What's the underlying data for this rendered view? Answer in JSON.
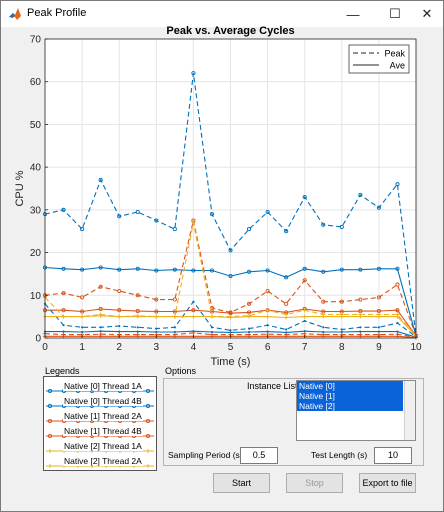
{
  "window": {
    "title": "Peak Profile",
    "controls": {
      "minimize": "—",
      "maximize": "☐",
      "close": "✕"
    }
  },
  "chart_data": {
    "type": "line",
    "title": "Peak vs. Average Cycles",
    "xlabel": "Time (s)",
    "ylabel": "CPU %",
    "xlim": [
      0,
      10
    ],
    "ylim": [
      0,
      70
    ],
    "xticks": [
      "0",
      "1",
      "2",
      "3",
      "4",
      "5",
      "6",
      "7",
      "8",
      "9",
      "10"
    ],
    "yticks": [
      "0",
      "10",
      "20",
      "30",
      "40",
      "50",
      "60",
      "70"
    ],
    "grid": true,
    "legend": {
      "position": "top-right",
      "entries": [
        {
          "label": "Peak",
          "style": "dashed"
        },
        {
          "label": "Ave",
          "style": "solid"
        }
      ]
    },
    "x": [
      0,
      0.5,
      1,
      1.5,
      2,
      2.5,
      3,
      3.5,
      4,
      4.5,
      5,
      5.5,
      6,
      6.5,
      7,
      7.5,
      8,
      8.5,
      9,
      9.5,
      10
    ],
    "series": [
      {
        "style": "dashed",
        "color": "#0072BD",
        "marker": "circle",
        "values": [
          29,
          30,
          25.5,
          37,
          28.5,
          29.5,
          27.5,
          25.5,
          62,
          29,
          20.5,
          25.5,
          29.5,
          25,
          33,
          26.5,
          26,
          33.5,
          30.5,
          36,
          0.5
        ]
      },
      {
        "style": "solid",
        "color": "#0072BD",
        "marker": "circle",
        "values": [
          16.5,
          16.2,
          16.0,
          16.5,
          16.0,
          16.2,
          15.8,
          16.0,
          15.8,
          15.8,
          14.5,
          15.5,
          15.8,
          14.2,
          16.2,
          15.5,
          16.0,
          16.0,
          16.2,
          16.2,
          0.5
        ]
      },
      {
        "style": "dashed",
        "color": "#D95319",
        "marker": "circle",
        "values": [
          10,
          10.5,
          9.5,
          12,
          11,
          10,
          9,
          9,
          27.5,
          7,
          6,
          8,
          11,
          8,
          13.5,
          8.5,
          8.5,
          9,
          9.5,
          12.5,
          0.5
        ]
      },
      {
        "style": "solid",
        "color": "#D95319",
        "marker": "circle",
        "values": [
          6.5,
          6.5,
          6.2,
          6.8,
          6.5,
          6.3,
          6.2,
          6.2,
          6.5,
          6.2,
          5.8,
          6.0,
          6.5,
          6.0,
          6.8,
          6.2,
          6.2,
          6.3,
          6.3,
          6.5,
          0.5
        ]
      },
      {
        "style": "dashed",
        "color": "#0072BD",
        "marker": "dot",
        "values": [
          8,
          3,
          2.5,
          2.5,
          2.8,
          2.5,
          2.2,
          2.5,
          8.5,
          2.5,
          1.8,
          2.2,
          3,
          2,
          4,
          2.5,
          2,
          2.5,
          2.5,
          3.5,
          0.3
        ]
      },
      {
        "style": "solid",
        "color": "#0072BD",
        "marker": "dot",
        "values": [
          1.5,
          1.5,
          1.4,
          1.6,
          1.5,
          1.5,
          1.4,
          1.4,
          1.6,
          1.4,
          1.3,
          1.4,
          1.5,
          1.3,
          1.6,
          1.4,
          1.4,
          1.5,
          1.5,
          1.5,
          0.2
        ]
      },
      {
        "style": "dashed",
        "color": "#EDB120",
        "marker": "plus",
        "values": [
          9.5,
          5,
          5,
          5.5,
          5,
          5.2,
          5,
          5,
          27,
          5,
          5,
          5.2,
          6.5,
          5.5,
          6.5,
          5.5,
          5.5,
          5.5,
          5.5,
          5.5,
          0.5
        ]
      },
      {
        "style": "solid",
        "color": "#EDB120",
        "marker": "plus",
        "values": [
          5,
          5,
          5,
          5.2,
          5,
          5,
          5,
          5,
          5,
          5,
          4.8,
          5,
          5,
          4.8,
          5,
          5,
          5,
          5,
          5,
          5,
          0.5
        ]
      },
      {
        "style": "dashed",
        "color": "#D95319",
        "marker": "plus",
        "values": [
          1,
          0.8,
          0.8,
          0.9,
          0.8,
          0.8,
          0.8,
          0.8,
          1.2,
          0.8,
          0.8,
          0.8,
          0.9,
          0.8,
          1,
          0.8,
          0.8,
          0.8,
          0.8,
          0.9,
          0.2
        ]
      },
      {
        "style": "solid",
        "color": "#D95319",
        "marker": "plus",
        "values": [
          0.4,
          0.4,
          0.4,
          0.4,
          0.4,
          0.4,
          0.4,
          0.4,
          0.4,
          0.4,
          0.4,
          0.4,
          0.4,
          0.4,
          0.4,
          0.4,
          0.4,
          0.4,
          0.4,
          0.4,
          0.1
        ]
      }
    ]
  },
  "legends": {
    "title": "Legends",
    "entries": [
      {
        "label": "Native [0] Thread 1A",
        "color": "#0072BD",
        "marker": "circle"
      },
      {
        "label": "Native [0] Thread 4B",
        "color": "#0072BD",
        "marker": "circle"
      },
      {
        "label": "Native [1] Thread 2A",
        "color": "#D95319",
        "marker": "circle"
      },
      {
        "label": "Native [1] Thread 4B",
        "color": "#D95319",
        "marker": "circle"
      },
      {
        "label": "Native [2] Thread 1A",
        "color": "#EDB120",
        "marker": "plus"
      },
      {
        "label": "Native [2] Thread 2A",
        "color": "#EDB120",
        "marker": "plus"
      }
    ]
  },
  "options": {
    "title": "Options",
    "instance_list_label": "Instance List",
    "instances": [
      "Native [0]",
      "Native [1]",
      "Native [2]"
    ],
    "sampling_period_label": "Sampling Period (s)",
    "sampling_period": "0.5",
    "test_length_label": "Test Length (s)",
    "test_length": "10"
  },
  "buttons": {
    "start": "Start",
    "stop": "Stop",
    "export": "Export to file"
  }
}
